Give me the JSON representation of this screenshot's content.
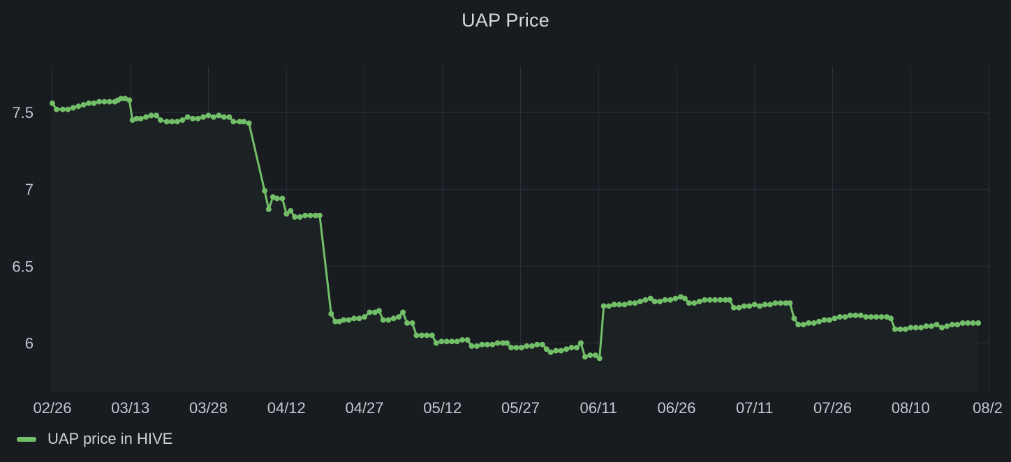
{
  "panel": {
    "title": "UAP Price"
  },
  "legend": {
    "items": [
      {
        "label": "UAP price in HIVE",
        "color": "#73bf69"
      }
    ]
  },
  "colors": {
    "series": "#73bf69",
    "grid": "#2c3038",
    "background": "#181b1f",
    "fill": "#1c2123"
  },
  "chart_data": {
    "type": "line",
    "title": "UAP Price",
    "xlabel": "",
    "ylabel": "",
    "x_ticks": [
      "02/26",
      "03/13",
      "03/28",
      "04/12",
      "04/27",
      "05/12",
      "05/27",
      "06/11",
      "06/26",
      "07/11",
      "07/26",
      "08/10",
      "08/2"
    ],
    "x_range_days": [
      0,
      180
    ],
    "ylim": [
      5.68,
      7.8
    ],
    "y_ticks": [
      6,
      6.5,
      7,
      7.5
    ],
    "grid": true,
    "legend_position": "bottom-left",
    "series": [
      {
        "name": "UAP price in HIVE",
        "points": [
          [
            0,
            7.56
          ],
          [
            0.8,
            7.52
          ],
          [
            2,
            7.52
          ],
          [
            3,
            7.52
          ],
          [
            4,
            7.53
          ],
          [
            5,
            7.54
          ],
          [
            6,
            7.55
          ],
          [
            7,
            7.56
          ],
          [
            8,
            7.56
          ],
          [
            9,
            7.57
          ],
          [
            10,
            7.57
          ],
          [
            11,
            7.57
          ],
          [
            12,
            7.57
          ],
          [
            12.6,
            7.58
          ],
          [
            13.2,
            7.59
          ],
          [
            14,
            7.59
          ],
          [
            14.8,
            7.58
          ],
          [
            15.4,
            7.45
          ],
          [
            16.2,
            7.46
          ],
          [
            17,
            7.46
          ],
          [
            18,
            7.47
          ],
          [
            19,
            7.48
          ],
          [
            20,
            7.48
          ],
          [
            20.8,
            7.45
          ],
          [
            22,
            7.44
          ],
          [
            23,
            7.44
          ],
          [
            24,
            7.44
          ],
          [
            25,
            7.45
          ],
          [
            26,
            7.47
          ],
          [
            27,
            7.46
          ],
          [
            28,
            7.46
          ],
          [
            29,
            7.47
          ],
          [
            30,
            7.48
          ],
          [
            31,
            7.47
          ],
          [
            32,
            7.48
          ],
          [
            33,
            7.47
          ],
          [
            34,
            7.47
          ],
          [
            34.8,
            7.44
          ],
          [
            36,
            7.44
          ],
          [
            36.8,
            7.44
          ],
          [
            37.8,
            7.43
          ],
          [
            40.8,
            6.99
          ],
          [
            41.6,
            6.87
          ],
          [
            42.4,
            6.95
          ],
          [
            43.2,
            6.94
          ],
          [
            44.2,
            6.94
          ],
          [
            45,
            6.84
          ],
          [
            45.8,
            6.86
          ],
          [
            46.6,
            6.82
          ],
          [
            47.6,
            6.82
          ],
          [
            48.6,
            6.83
          ],
          [
            49.6,
            6.83
          ],
          [
            50.6,
            6.83
          ],
          [
            51.4,
            6.83
          ],
          [
            53.6,
            6.19
          ],
          [
            54.4,
            6.14
          ],
          [
            55.2,
            6.14
          ],
          [
            56,
            6.15
          ],
          [
            57,
            6.15
          ],
          [
            58,
            6.16
          ],
          [
            59,
            6.16
          ],
          [
            60,
            6.17
          ],
          [
            61,
            6.2
          ],
          [
            62,
            6.2
          ],
          [
            62.8,
            6.21
          ],
          [
            63.6,
            6.15
          ],
          [
            64.6,
            6.15
          ],
          [
            65.6,
            6.16
          ],
          [
            66.6,
            6.17
          ],
          [
            67.4,
            6.2
          ],
          [
            68.2,
            6.13
          ],
          [
            69.2,
            6.13
          ],
          [
            70,
            6.05
          ],
          [
            71,
            6.05
          ],
          [
            72,
            6.05
          ],
          [
            73,
            6.05
          ],
          [
            73.8,
            6.0
          ],
          [
            74.8,
            6.01
          ],
          [
            75.8,
            6.01
          ],
          [
            76.8,
            6.01
          ],
          [
            77.8,
            6.01
          ],
          [
            78.8,
            6.02
          ],
          [
            79.8,
            6.02
          ],
          [
            80.6,
            5.98
          ],
          [
            81.6,
            5.98
          ],
          [
            82.6,
            5.99
          ],
          [
            83.6,
            5.99
          ],
          [
            84.6,
            5.99
          ],
          [
            85.6,
            6.0
          ],
          [
            86.6,
            6.0
          ],
          [
            87.4,
            6.0
          ],
          [
            88.2,
            5.97
          ],
          [
            89.2,
            5.97
          ],
          [
            90.2,
            5.97
          ],
          [
            91.2,
            5.98
          ],
          [
            92.2,
            5.98
          ],
          [
            93.2,
            5.99
          ],
          [
            94.2,
            5.99
          ],
          [
            95,
            5.96
          ],
          [
            95.8,
            5.94
          ],
          [
            96.8,
            5.95
          ],
          [
            97.8,
            5.95
          ],
          [
            98.8,
            5.96
          ],
          [
            99.8,
            5.97
          ],
          [
            100.8,
            5.97
          ],
          [
            101.6,
            6.0
          ],
          [
            102.4,
            5.91
          ],
          [
            103.4,
            5.92
          ],
          [
            104.4,
            5.92
          ],
          [
            105.2,
            5.9
          ],
          [
            106,
            6.24
          ],
          [
            107,
            6.24
          ],
          [
            108,
            6.25
          ],
          [
            109,
            6.25
          ],
          [
            110,
            6.25
          ],
          [
            111,
            6.26
          ],
          [
            112,
            6.26
          ],
          [
            113,
            6.27
          ],
          [
            114,
            6.28
          ],
          [
            115,
            6.29
          ],
          [
            115.8,
            6.27
          ],
          [
            116.8,
            6.27
          ],
          [
            117.8,
            6.28
          ],
          [
            118.8,
            6.28
          ],
          [
            119.8,
            6.29
          ],
          [
            120.8,
            6.3
          ],
          [
            121.6,
            6.29
          ],
          [
            122.4,
            6.26
          ],
          [
            123.4,
            6.26
          ],
          [
            124.4,
            6.27
          ],
          [
            125.4,
            6.28
          ],
          [
            126.4,
            6.28
          ],
          [
            127.4,
            6.28
          ],
          [
            128.4,
            6.28
          ],
          [
            129.4,
            6.28
          ],
          [
            130.2,
            6.28
          ],
          [
            131,
            6.23
          ],
          [
            132,
            6.23
          ],
          [
            133,
            6.24
          ],
          [
            134,
            6.24
          ],
          [
            135,
            6.25
          ],
          [
            136,
            6.24
          ],
          [
            137,
            6.25
          ],
          [
            138,
            6.25
          ],
          [
            139,
            6.26
          ],
          [
            140,
            6.26
          ],
          [
            141,
            6.26
          ],
          [
            141.8,
            6.26
          ],
          [
            142.6,
            6.16
          ],
          [
            143.4,
            6.12
          ],
          [
            144.4,
            6.12
          ],
          [
            145.4,
            6.13
          ],
          [
            146.4,
            6.13
          ],
          [
            147.4,
            6.14
          ],
          [
            148.4,
            6.15
          ],
          [
            149.4,
            6.15
          ],
          [
            150.4,
            6.16
          ],
          [
            151.4,
            6.17
          ],
          [
            152.4,
            6.17
          ],
          [
            153.4,
            6.18
          ],
          [
            154.4,
            6.18
          ],
          [
            155.4,
            6.18
          ],
          [
            156.4,
            6.17
          ],
          [
            157.4,
            6.17
          ],
          [
            158.4,
            6.17
          ],
          [
            159.4,
            6.17
          ],
          [
            160.4,
            6.17
          ],
          [
            161.2,
            6.16
          ],
          [
            162,
            6.09
          ],
          [
            163,
            6.09
          ],
          [
            164,
            6.09
          ],
          [
            165,
            6.1
          ],
          [
            166,
            6.1
          ],
          [
            167,
            6.1
          ],
          [
            168,
            6.11
          ],
          [
            169,
            6.11
          ],
          [
            170,
            6.12
          ],
          [
            171,
            6.1
          ],
          [
            172,
            6.11
          ],
          [
            173,
            6.12
          ],
          [
            174,
            6.12
          ],
          [
            175,
            6.13
          ],
          [
            176,
            6.13
          ],
          [
            177,
            6.13
          ],
          [
            178,
            6.13
          ]
        ]
      }
    ]
  }
}
